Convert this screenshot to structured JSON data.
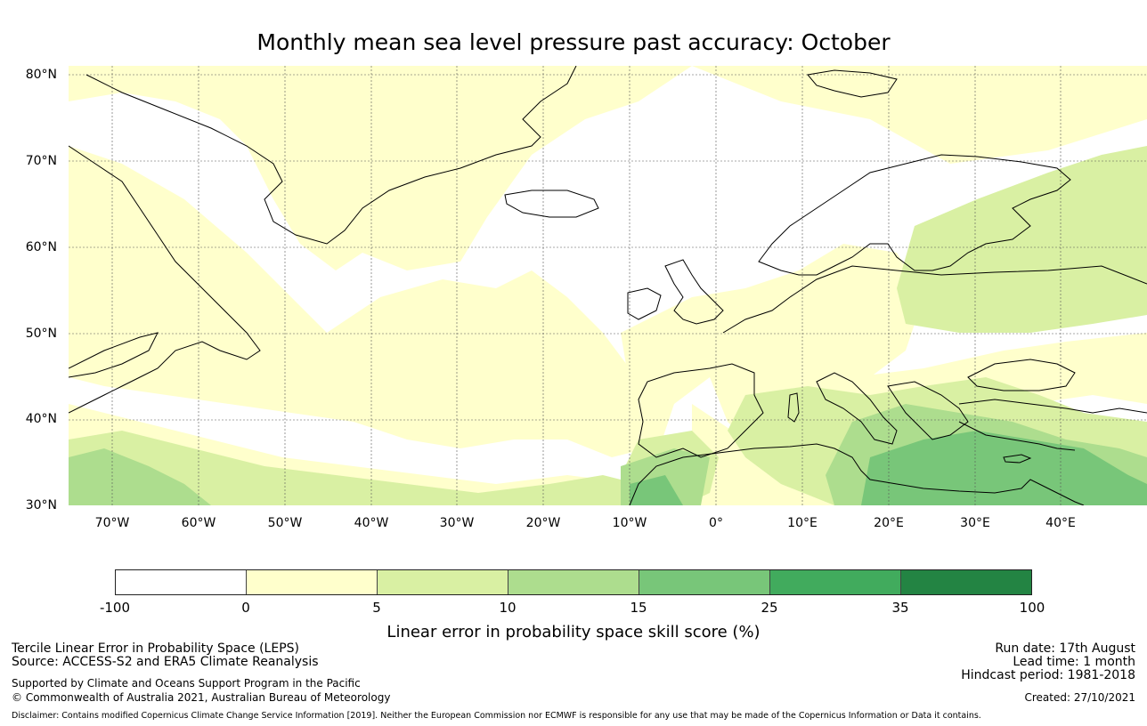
{
  "title": "Monthly mean sea level pressure past accuracy: October",
  "map": {
    "lat_labels": [
      "80°N",
      "70°N",
      "60°N",
      "50°N",
      "40°N",
      "30°N"
    ],
    "lon_labels": [
      "70°W",
      "60°W",
      "50°W",
      "40°W",
      "30°W",
      "20°W",
      "10°W",
      "0°",
      "10°E",
      "20°E",
      "30°E",
      "40°E"
    ],
    "extent": {
      "lon_min": -75,
      "lon_max": 50,
      "lat_min": 30,
      "lat_max": 81
    },
    "gridlines": true,
    "colors": {
      "class_minus100_0": "#ffffff",
      "class_0_5": "#ffffcc",
      "class_5_10": "#d9f0a3",
      "class_10_15": "#addd8e",
      "class_15_25": "#78c679",
      "class_25_35": "#41ab5d",
      "class_35_100": "#238443",
      "coastline": "#000000"
    }
  },
  "colorbar": {
    "ticks": [
      "-100",
      "0",
      "5",
      "10",
      "15",
      "25",
      "35",
      "100"
    ],
    "colors": [
      "#ffffff",
      "#ffffcc",
      "#d9f0a3",
      "#addd8e",
      "#78c679",
      "#41ab5d",
      "#238443"
    ],
    "label": "Linear error in probability space skill score (%)"
  },
  "footer": {
    "left_line1": "Tercile Linear Error in Probability Space (LEPS)",
    "left_line2": "Source: ACCESS-S2 and ERA5 Climate Reanalysis",
    "left_line3": "Supported by Climate and Oceans Support Program in the Pacific",
    "left_line4": "© Commonwealth of Australia 2021, Australian Bureau of Meteorology",
    "run_date": "Run date: 17th August",
    "lead_time": "Lead time: 1 month",
    "hindcast": "Hindcast period: 1981-2018",
    "created": "Created: 27/10/2021",
    "disclaimer": "Disclaimer: Contains modified Copernicus Climate Change Service Information [2019]. Neither the European Commission nor ECMWF is responsible for any use that may be made of the Copernicus Information or Data it contains."
  }
}
